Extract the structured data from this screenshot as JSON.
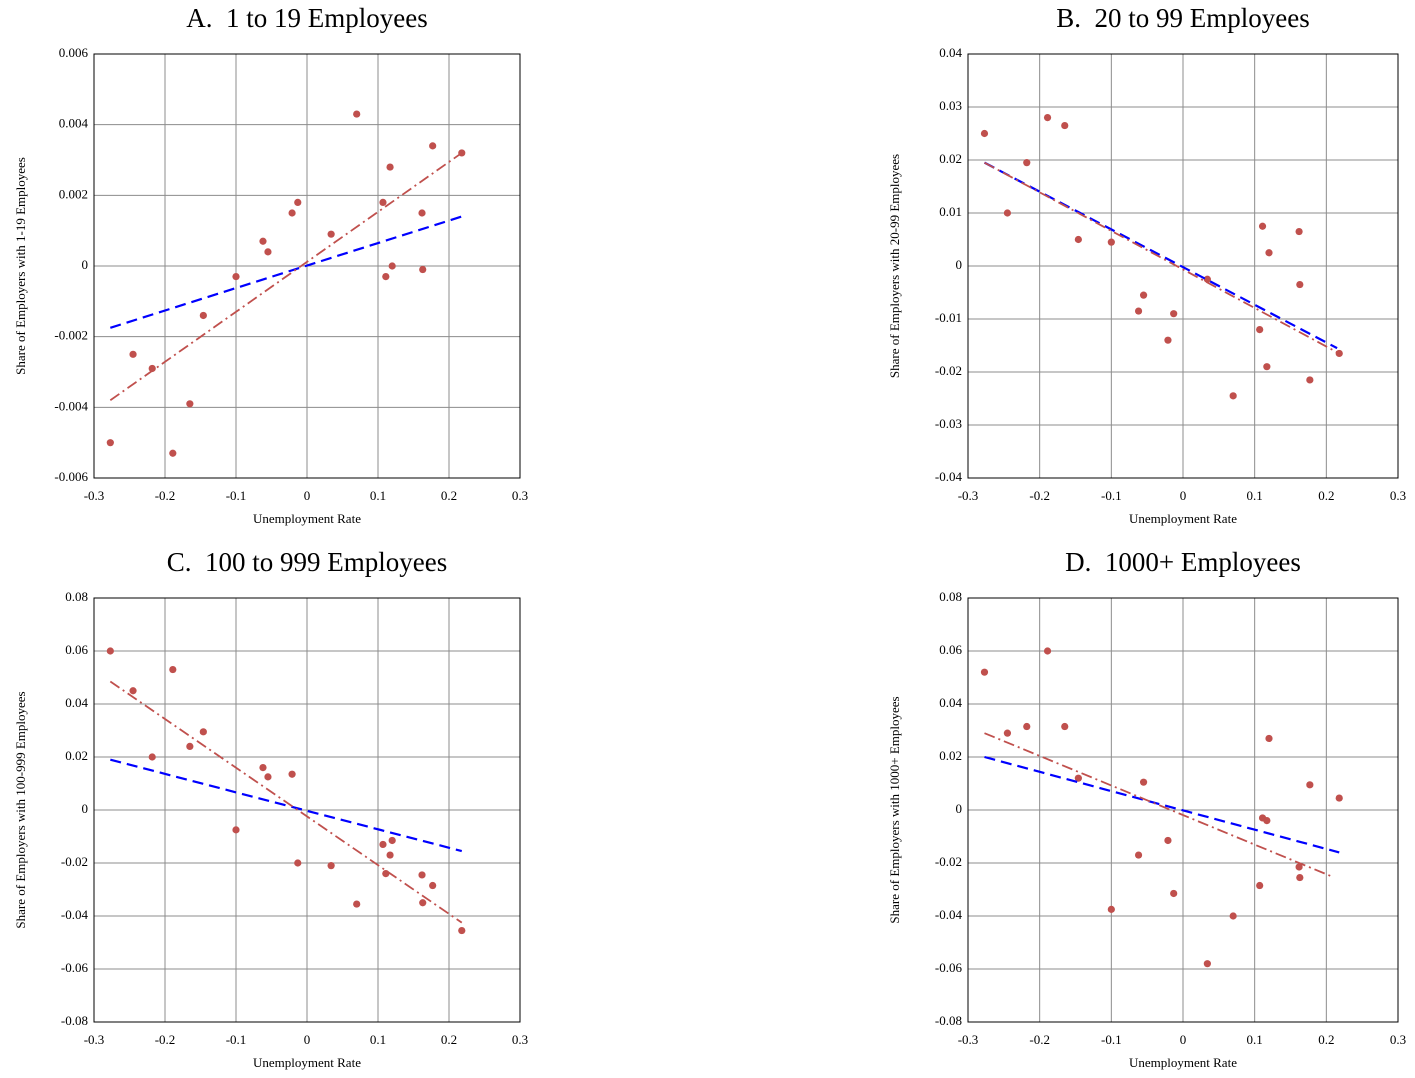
{
  "chart_data": [
    {
      "type": "scatter",
      "title": "A.  1 to 19 Employees",
      "xlabel": "Unemployment Rate",
      "ylabel": "Share of Employers with 1-19 Employees",
      "xlim": [
        -0.3,
        0.3
      ],
      "xticks": [
        -0.3,
        -0.2,
        -0.1,
        0,
        0.1,
        0.2,
        0.3
      ],
      "ylim": [
        -0.006,
        0.006
      ],
      "yticks": [
        -0.006,
        -0.004,
        -0.002,
        0,
        0.002,
        0.004,
        0.006
      ],
      "grid": true,
      "series": [
        {
          "type": "scatter",
          "color": "#c0504d",
          "x": [
            -0.277,
            -0.245,
            -0.218,
            -0.189,
            -0.165,
            -0.146,
            -0.1,
            -0.062,
            -0.055,
            -0.021,
            -0.013,
            0.034,
            0.07,
            0.107,
            0.111,
            0.117,
            0.12,
            0.162,
            0.163,
            0.177,
            0.218
          ],
          "values": [
            -0.005,
            -0.0025,
            -0.0029,
            -0.0053,
            -0.0039,
            -0.0014,
            -0.0003,
            0.0007,
            0.0004,
            0.0015,
            0.0018,
            0.0009,
            0.0043,
            0.0018,
            -0.0003,
            0.0028,
            0.0,
            0.0015,
            -0.0001,
            0.0034,
            0.0032
          ]
        },
        {
          "type": "line",
          "style": "dashed",
          "color": "#0000ff",
          "x": [
            -0.277,
            0.218
          ],
          "values": [
            -0.00175,
            0.0014
          ]
        },
        {
          "type": "line",
          "style": "dashdot",
          "color": "#c0504d",
          "x": [
            -0.277,
            0.218
          ],
          "values": [
            -0.0038,
            0.0032
          ]
        }
      ]
    },
    {
      "type": "scatter",
      "title": "B.  20 to 99 Employees",
      "xlabel": "Unemployment Rate",
      "ylabel": "Share of Employers with 20-99 Employees",
      "xlim": [
        -0.3,
        0.3
      ],
      "xticks": [
        -0.3,
        -0.2,
        -0.1,
        0,
        0.1,
        0.2,
        0.3
      ],
      "ylim": [
        -0.04,
        0.04
      ],
      "yticks": [
        -0.04,
        -0.03,
        -0.02,
        -0.01,
        0,
        0.01,
        0.02,
        0.03,
        0.04
      ],
      "grid": true,
      "series": [
        {
          "type": "scatter",
          "color": "#c0504d",
          "x": [
            -0.277,
            -0.245,
            -0.218,
            -0.189,
            -0.165,
            -0.146,
            -0.1,
            -0.062,
            -0.055,
            -0.021,
            -0.013,
            0.034,
            0.07,
            0.107,
            0.111,
            0.117,
            0.12,
            0.162,
            0.163,
            0.177,
            0.218
          ],
          "values": [
            0.025,
            0.01,
            0.0195,
            0.028,
            0.0265,
            0.005,
            0.0045,
            -0.0085,
            -0.0055,
            -0.014,
            -0.009,
            -0.0025,
            -0.0245,
            -0.012,
            0.0075,
            -0.019,
            0.0025,
            0.0065,
            -0.0035,
            -0.0215,
            -0.0165
          ]
        },
        {
          "type": "line",
          "style": "dashed",
          "color": "#0000ff",
          "x": [
            -0.277,
            0.215
          ],
          "values": [
            0.0195,
            -0.0155
          ]
        },
        {
          "type": "line",
          "style": "dashdot",
          "color": "#c0504d",
          "x": [
            -0.277,
            0.218
          ],
          "values": [
            0.0195,
            -0.0165
          ]
        }
      ]
    },
    {
      "type": "scatter",
      "title": "C.  100 to 999 Employees",
      "xlabel": "Unemployment Rate",
      "ylabel": "Share of Employers with 100-999 Employees",
      "xlim": [
        -0.3,
        0.3
      ],
      "xticks": [
        -0.3,
        -0.2,
        -0.1,
        0,
        0.1,
        0.2,
        0.3
      ],
      "ylim": [
        -0.08,
        0.08
      ],
      "yticks": [
        -0.08,
        -0.06,
        -0.04,
        -0.02,
        0,
        0.02,
        0.04,
        0.06,
        0.08
      ],
      "grid": true,
      "series": [
        {
          "type": "scatter",
          "color": "#c0504d",
          "x": [
            -0.277,
            -0.245,
            -0.218,
            -0.189,
            -0.165,
            -0.146,
            -0.1,
            -0.062,
            -0.055,
            -0.021,
            -0.013,
            0.034,
            0.07,
            0.107,
            0.111,
            0.117,
            0.12,
            0.162,
            0.163,
            0.177,
            0.218
          ],
          "values": [
            0.06,
            0.045,
            0.02,
            0.053,
            0.024,
            0.0295,
            -0.0075,
            0.016,
            0.0125,
            0.0135,
            -0.02,
            -0.021,
            -0.0355,
            -0.013,
            -0.024,
            -0.017,
            -0.0115,
            -0.0245,
            -0.035,
            -0.0285,
            -0.0455
          ]
        },
        {
          "type": "line",
          "style": "dashed",
          "color": "#0000ff",
          "x": [
            -0.277,
            0.218
          ],
          "values": [
            0.019,
            -0.0155
          ]
        },
        {
          "type": "line",
          "style": "dashdot",
          "color": "#c0504d",
          "x": [
            -0.277,
            0.218
          ],
          "values": [
            0.0485,
            -0.0425
          ]
        }
      ]
    },
    {
      "type": "scatter",
      "title": "D.  1000+ Employees",
      "xlabel": "Unemployment Rate",
      "ylabel": "Share of Employers with 1000+ Employees",
      "xlim": [
        -0.3,
        0.3
      ],
      "xticks": [
        -0.3,
        -0.2,
        -0.1,
        0,
        0.1,
        0.2,
        0.3
      ],
      "ylim": [
        -0.08,
        0.08
      ],
      "yticks": [
        -0.08,
        -0.06,
        -0.04,
        -0.02,
        0,
        0.02,
        0.04,
        0.06,
        0.08
      ],
      "grid": true,
      "series": [
        {
          "type": "scatter",
          "color": "#c0504d",
          "x": [
            -0.277,
            -0.245,
            -0.218,
            -0.189,
            -0.165,
            -0.146,
            -0.1,
            -0.062,
            -0.055,
            -0.021,
            -0.013,
            0.034,
            0.07,
            0.107,
            0.111,
            0.117,
            0.12,
            0.162,
            0.163,
            0.177,
            0.218
          ],
          "values": [
            0.052,
            0.029,
            0.0315,
            0.06,
            0.0315,
            0.012,
            -0.0375,
            -0.017,
            0.0105,
            -0.0115,
            -0.0315,
            -0.058,
            -0.04,
            -0.0285,
            -0.003,
            -0.004,
            0.027,
            -0.0215,
            -0.0255,
            0.0095,
            0.0045
          ]
        },
        {
          "type": "line",
          "style": "dashed",
          "color": "#0000ff",
          "x": [
            -0.277,
            0.218
          ],
          "values": [
            0.02,
            -0.016
          ]
        },
        {
          "type": "line",
          "style": "dashdot",
          "color": "#c0504d",
          "x": [
            -0.277,
            0.207
          ],
          "values": [
            0.029,
            -0.025
          ]
        }
      ]
    }
  ]
}
